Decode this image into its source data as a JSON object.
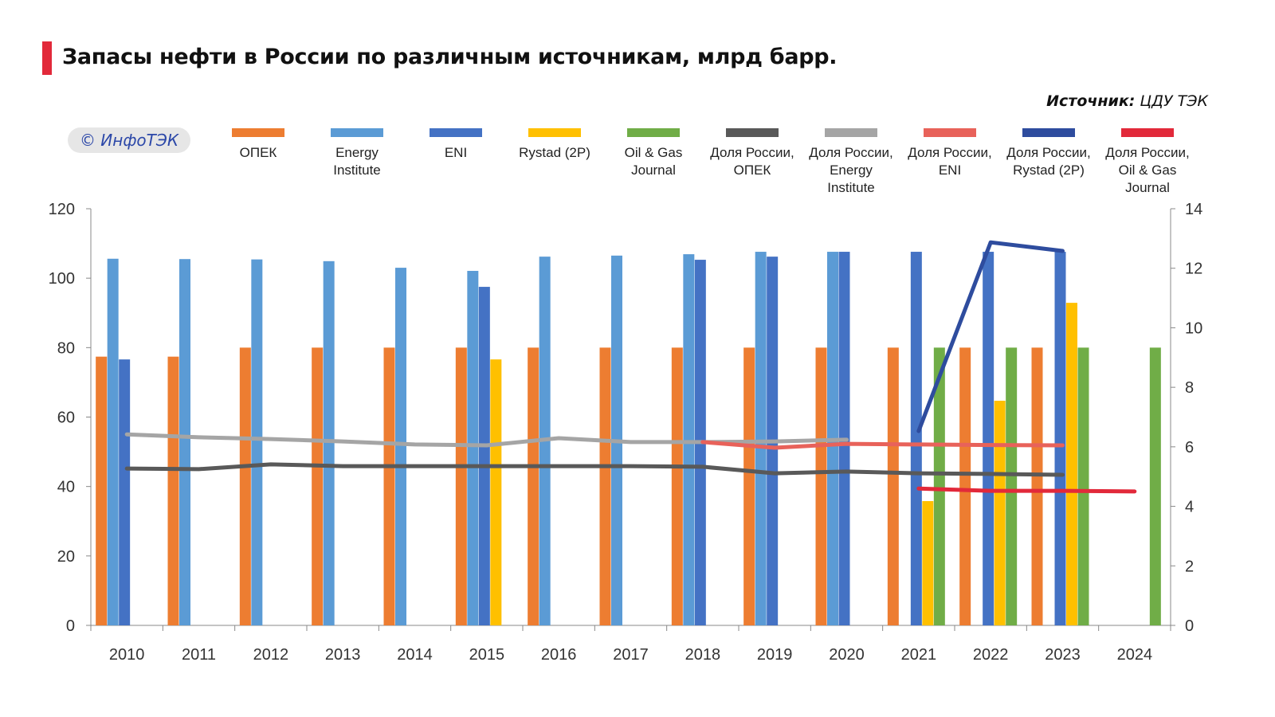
{
  "title": "Запасы нефти в России по различным источникам, млрд барр.",
  "source_label": "Источник:",
  "source_value": "ЦДУ ТЭК",
  "logo": "© ИнфоТЭК",
  "chart_data": {
    "type": "bar",
    "title": "Запасы нефти в России по различным источникам, млрд барр.",
    "categories": [
      "2010",
      "2011",
      "2012",
      "2013",
      "2014",
      "2015",
      "2016",
      "2017",
      "2018",
      "2019",
      "2020",
      "2021",
      "2022",
      "2023",
      "2024"
    ],
    "ylim": [
      0,
      120
    ],
    "yticks": [
      0,
      20,
      40,
      60,
      80,
      100,
      120
    ],
    "y2lim": [
      0,
      14
    ],
    "y2ticks": [
      0,
      2,
      4,
      6,
      8,
      10,
      12,
      14
    ],
    "legend_position": "top",
    "bar_series": [
      {
        "name": "ОПЕК",
        "color": "#ed7d31",
        "values": [
          77.4,
          77.4,
          80,
          80,
          80,
          80,
          80,
          80,
          80,
          80,
          80,
          80,
          80,
          80,
          null
        ]
      },
      {
        "name": "Energy Institute",
        "color": "#5b9bd5",
        "values": [
          105.6,
          105.5,
          105.4,
          104.9,
          103.0,
          102.1,
          106.2,
          106.5,
          106.9,
          107.6,
          107.6,
          null,
          null,
          null,
          null
        ]
      },
      {
        "name": "ENI",
        "color": "#4472c4",
        "values": [
          76.6,
          null,
          null,
          null,
          null,
          97.5,
          null,
          null,
          105.3,
          106.2,
          107.6,
          107.6,
          107.6,
          107.6,
          null
        ]
      },
      {
        "name": "Rystad (2P)",
        "color": "#ffc000",
        "values": [
          null,
          null,
          null,
          null,
          null,
          76.6,
          null,
          null,
          null,
          null,
          null,
          35.8,
          64.7,
          92.9,
          null
        ]
      },
      {
        "name": "Oil & Gas Journal",
        "color": "#70ad47",
        "values": [
          null,
          null,
          null,
          null,
          null,
          null,
          null,
          null,
          null,
          null,
          null,
          80,
          80,
          80,
          80
        ]
      }
    ],
    "line_series": [
      {
        "name": "Доля России, ОПЕК",
        "color": "#595959",
        "axis": "right",
        "values": [
          5.27,
          5.25,
          5.41,
          5.35,
          5.35,
          5.35,
          5.35,
          5.35,
          5.33,
          5.11,
          5.17,
          5.11,
          5.09,
          5.06,
          null
        ]
      },
      {
        "name": "Доля России, Energy Institute",
        "color": "#a5a5a5",
        "axis": "right",
        "values": [
          6.42,
          6.32,
          6.26,
          6.18,
          6.08,
          6.05,
          6.29,
          6.16,
          6.16,
          6.18,
          6.24,
          null,
          null,
          null,
          null
        ]
      },
      {
        "name": "Доля России, ENI",
        "color": "#e8625a",
        "axis": "right",
        "values": [
          null,
          null,
          null,
          null,
          null,
          null,
          null,
          null,
          6.16,
          5.97,
          6.1,
          6.08,
          6.06,
          6.05,
          null
        ]
      },
      {
        "name": "Доля России, Rystad (2P)",
        "color": "#2e4c9e",
        "axis": "right",
        "values": [
          null,
          null,
          null,
          null,
          null,
          null,
          null,
          null,
          null,
          null,
          null,
          6.53,
          12.87,
          12.58,
          null
        ]
      },
      {
        "name": "Доля России, Oil & Gas Journal",
        "color": "#e2293a",
        "axis": "right",
        "values": [
          null,
          null,
          null,
          null,
          null,
          null,
          null,
          null,
          null,
          null,
          null,
          4.6,
          4.52,
          4.52,
          4.5
        ]
      }
    ],
    "legend_lines": [
      [
        "ОПЕК"
      ],
      [
        "Energy",
        "Institute"
      ],
      [
        "ENI"
      ],
      [
        "Rystad (2P)"
      ],
      [
        "Oil & Gas",
        "Journal"
      ],
      [
        "Доля России,",
        "ОПЕК"
      ],
      [
        "Доля России,",
        "Energy",
        "Institute"
      ],
      [
        "Доля России,",
        "ENI"
      ],
      [
        "Доля России,",
        "Rystad (2P)"
      ],
      [
        "Доля России,",
        "Oil & Gas",
        "Journal"
      ]
    ]
  }
}
